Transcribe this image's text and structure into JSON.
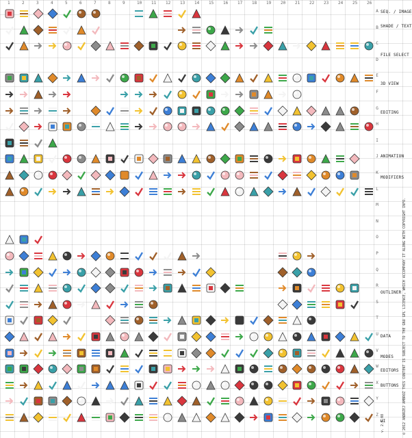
{
  "column_labels": [
    "1",
    "2",
    "3",
    "4",
    "5",
    "6",
    "7",
    "8",
    "9",
    "10",
    "11",
    "12",
    "13",
    "14",
    "15",
    "16",
    "17",
    "18",
    "19",
    "20",
    "21",
    "22",
    "23",
    "24",
    "25",
    "26"
  ],
  "row_labels": [
    "A",
    "B",
    "C",
    "D",
    "E",
    "F",
    "G",
    "H",
    "I",
    "J",
    "K",
    "L",
    "M",
    "N",
    "O",
    "P",
    "Q",
    "R",
    "S",
    "T",
    "U",
    "V",
    "W",
    "X",
    "Y",
    "Z"
  ],
  "sections": [
    "SEQ. / IMAGE",
    "SHADE / TEXT",
    "FILE SELECT",
    "3D VIEW",
    "EDITING",
    "ANIMATION",
    "MODIFIERS",
    "OUTLINER",
    "DATA",
    "MODES",
    "EDITORS",
    "BUTTONS",
    "UI"
  ],
  "copyright": "© 2012 ANDRZEJ AMBROŻ  THIS CONTENT IS SUBJECT TO THE GNU GPL LICENCE, WHICH ACCOMPANY IT ALONG WITH COPYRIGHT INFO.",
  "version": "v. 2.5.08",
  "icon_colors": {
    "gray": "#8c8c8c",
    "dark": "#3a3a3a",
    "blue": "#3d7fd6",
    "orange": "#e08a2a",
    "red": "#d9363e",
    "green": "#3da84a",
    "yellow": "#f2c230",
    "brown": "#a0602a",
    "white": "#f4f4f4",
    "pink": "#f3b9bd",
    "teal": "#3aa0a8"
  },
  "icon_kinds": [
    "square",
    "circle",
    "tri",
    "check",
    "arrow",
    "diamond",
    "bar"
  ]
}
